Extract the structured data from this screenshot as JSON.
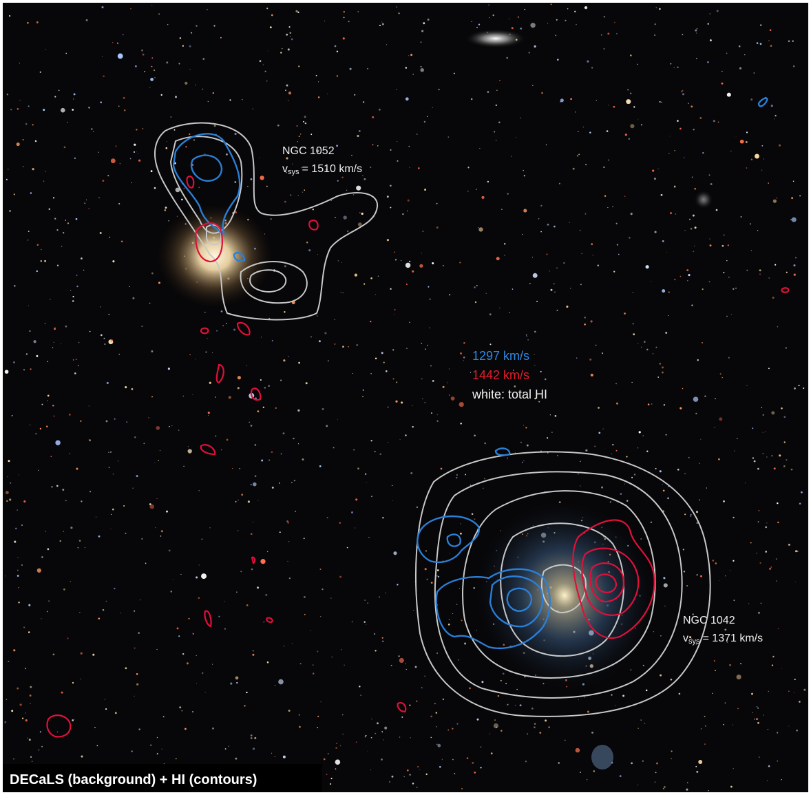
{
  "caption": "DECaLS (background) + HI (contours)",
  "galaxies": [
    {
      "name": "NGC 1052",
      "velocity": {
        "symbol": "v",
        "subscript": "sys",
        "value": "= 1510 km/s"
      }
    },
    {
      "name": "NGC 1042",
      "velocity": {
        "symbol": "v",
        "subscript": "sys",
        "value": "= 1371 km/s"
      }
    }
  ],
  "legend": {
    "blue": "1297 km/s",
    "red": "1442 km/s",
    "white": "white: total HI"
  }
}
